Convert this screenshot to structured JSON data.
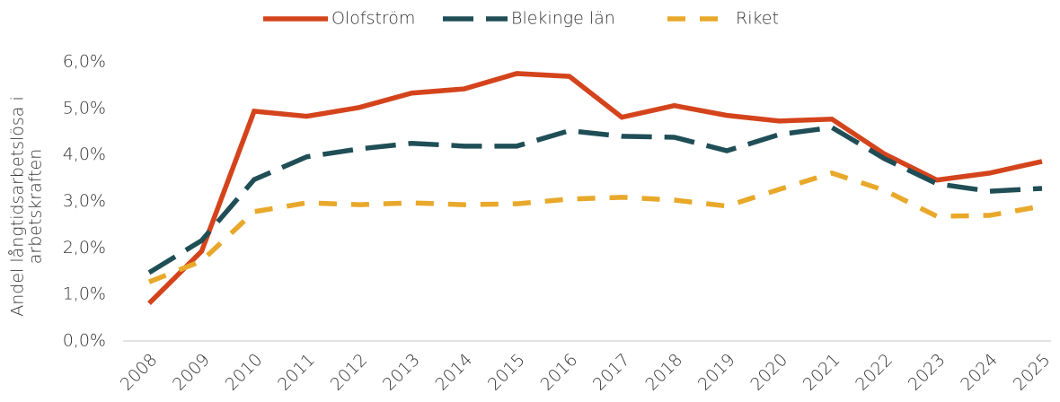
{
  "chart_data": {
    "type": "line",
    "y_label": [
      "Andel långtidsarbetslösa i",
      "arbetskraften"
    ],
    "categories": [
      "2008",
      "2009",
      "2010",
      "2011",
      "2012",
      "2013",
      "2014",
      "2015",
      "2016",
      "2017",
      "2018",
      "2019",
      "2020",
      "2021",
      "2022",
      "2023",
      "2024",
      "2025"
    ],
    "series": [
      {
        "name": "Olofström",
        "color": "#d4441c",
        "dash": "none",
        "values": [
          0.81,
          1.93,
          4.94,
          4.83,
          5.02,
          5.33,
          5.42,
          5.75,
          5.69,
          4.81,
          5.06,
          4.85,
          4.73,
          4.77,
          4.02,
          3.46,
          3.61,
          3.86
        ]
      },
      {
        "name": "Blekinge län",
        "color": "#1f4e56",
        "dash": "34 14",
        "values": [
          1.47,
          2.16,
          3.47,
          3.96,
          4.13,
          4.25,
          4.19,
          4.19,
          4.52,
          4.4,
          4.38,
          4.09,
          4.44,
          4.59,
          3.92,
          3.38,
          3.22,
          3.28
        ]
      },
      {
        "name": "Riket",
        "color": "#e8a82a",
        "dash": "20 16",
        "values": [
          1.27,
          1.72,
          2.78,
          2.97,
          2.93,
          2.97,
          2.93,
          2.95,
          3.05,
          3.09,
          3.03,
          2.9,
          3.26,
          3.61,
          3.24,
          2.68,
          2.7,
          2.9
        ]
      }
    ],
    "ylim": [
      0,
      6
    ],
    "yticks": [
      {
        "value": 0,
        "label": "0,0%"
      },
      {
        "value": 1,
        "label": "1,0%"
      },
      {
        "value": 2,
        "label": "2,0%"
      },
      {
        "value": 3,
        "label": "3,0%"
      },
      {
        "value": 4,
        "label": "4,0%"
      },
      {
        "value": 5,
        "label": "5,0%"
      },
      {
        "value": 6,
        "label": "6,0%"
      }
    ],
    "grid": false,
    "legend": "top"
  }
}
